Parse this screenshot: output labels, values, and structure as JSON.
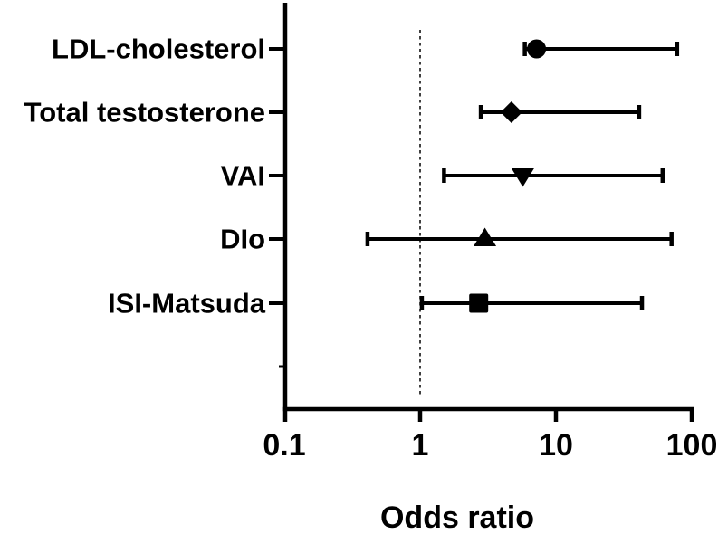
{
  "figure": {
    "background_color": "#ffffff",
    "foreground_color": "#000000"
  },
  "chart_data": {
    "type": "scatter",
    "subtype": "forest-plot",
    "orientation": "horizontal",
    "x_scale": "log10",
    "xlabel": "Odds ratio",
    "xlim": [
      0.1,
      100
    ],
    "x_tick_values": [
      0.1,
      1,
      10,
      100
    ],
    "x_tick_labels": [
      "0.1",
      "1",
      "10",
      "100"
    ],
    "reference_line_x": 1,
    "reference_line_style": "dashed",
    "grid": false,
    "legend": false,
    "categories": [
      "LDL-cholesterol",
      "Total testosterone",
      "VAI",
      "DIo",
      "ISI-Matsuda"
    ],
    "series": [
      {
        "name": "LDL-cholesterol",
        "marker": "circle",
        "odds_ratio": 7.2,
        "ci_low": 5.9,
        "ci_high": 78
      },
      {
        "name": "Total testosterone",
        "marker": "diamond",
        "odds_ratio": 4.7,
        "ci_low": 2.8,
        "ci_high": 41
      },
      {
        "name": "VAI",
        "marker": "triangle-down",
        "odds_ratio": 5.7,
        "ci_low": 1.5,
        "ci_high": 61
      },
      {
        "name": "DIo",
        "marker": "triangle-up",
        "odds_ratio": 3.0,
        "ci_low": 0.41,
        "ci_high": 71
      },
      {
        "name": "ISI-Matsuda",
        "marker": "square",
        "odds_ratio": 2.7,
        "ci_low": 1.03,
        "ci_high": 43
      }
    ],
    "colors": {
      "marker": "#000000",
      "line": "#000000",
      "axis": "#000000",
      "text": "#000000"
    }
  }
}
